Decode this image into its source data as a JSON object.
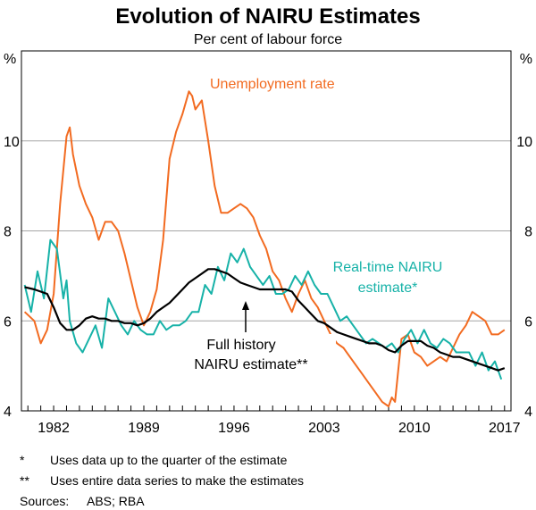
{
  "chart_data": {
    "type": "line",
    "title": "Evolution of NAIRU Estimates",
    "subtitle": "Per cent of labour force",
    "ylabel_left": "%",
    "ylabel_right": "%",
    "ylim": [
      4,
      12
    ],
    "yticks": [
      4,
      6,
      8,
      10
    ],
    "xlim": [
      1979.5,
      2017.5
    ],
    "xticks": [
      1982,
      1989,
      1996,
      2003,
      2010,
      2017
    ],
    "grid": true,
    "colors": {
      "unemployment": "#f26b21",
      "realtime": "#17b2a8",
      "fullhistory": "#000000",
      "grid": "#a6a6a6"
    },
    "series": [
      {
        "name": "Unemployment rate",
        "label": "Unemployment rate",
        "color": "#f26b21",
        "x": [
          1979.75,
          1980.5,
          1981.0,
          1981.5,
          1982.0,
          1982.5,
          1983.0,
          1983.25,
          1983.5,
          1984.0,
          1984.5,
          1985.0,
          1985.5,
          1986.0,
          1986.5,
          1987.0,
          1987.5,
          1988.0,
          1988.5,
          1989.0,
          1989.5,
          1990.0,
          1990.5,
          1991.0,
          1991.5,
          1992.0,
          1992.5,
          1992.75,
          1993.0,
          1993.5,
          1994.0,
          1994.5,
          1995.0,
          1995.5,
          1996.0,
          1996.5,
          1997.0,
          1997.5,
          1998.0,
          1998.5,
          1999.0,
          1999.5,
          2000.0,
          2000.5,
          2001.0,
          2001.5,
          2002.0,
          2002.5,
          2003.0,
          2003.5,
          2004.0,
          2004.5,
          2005.0,
          2005.5,
          2006.0,
          2006.5,
          2007.0,
          2007.5,
          2008.0,
          2008.25,
          2008.5,
          2009.0,
          2009.5,
          2010.0,
          2010.5,
          2011.0,
          2011.5,
          2012.0,
          2012.5,
          2013.0,
          2013.5,
          2014.0,
          2014.5,
          2015.0,
          2015.5,
          2016.0,
          2016.5,
          2017.0
        ],
        "values": [
          6.2,
          6.0,
          5.5,
          5.8,
          6.6,
          8.6,
          10.1,
          10.3,
          9.7,
          9.0,
          8.6,
          8.3,
          7.8,
          8.2,
          8.2,
          8.0,
          7.5,
          6.9,
          6.3,
          5.9,
          6.2,
          6.7,
          7.8,
          9.6,
          10.2,
          10.6,
          11.1,
          11.0,
          10.7,
          10.9,
          10.0,
          9.0,
          8.4,
          8.4,
          8.5,
          8.6,
          8.5,
          8.3,
          7.9,
          7.6,
          7.1,
          6.9,
          6.5,
          6.2,
          6.6,
          6.9,
          6.5,
          6.3,
          6.0,
          5.7,
          5.5,
          5.4,
          5.2,
          5.0,
          4.8,
          4.6,
          4.4,
          4.2,
          4.1,
          4.3,
          4.2,
          5.6,
          5.7,
          5.3,
          5.2,
          5.0,
          5.1,
          5.2,
          5.1,
          5.4,
          5.7,
          5.9,
          6.2,
          6.1,
          6.0,
          5.7,
          5.7,
          5.8
        ]
      },
      {
        "name": "Real-time NAIRU estimate*",
        "label_line1": "Real-time NAIRU",
        "label_line2": "estimate*",
        "color": "#17b2a8",
        "x": [
          1979.75,
          1980.25,
          1980.75,
          1981.25,
          1981.75,
          1982.25,
          1982.75,
          1983.0,
          1983.25,
          1983.75,
          1984.25,
          1984.75,
          1985.25,
          1985.75,
          1986.25,
          1986.75,
          1987.25,
          1987.75,
          1988.25,
          1988.75,
          1989.25,
          1989.75,
          1990.25,
          1990.75,
          1991.25,
          1991.75,
          1992.25,
          1992.75,
          1993.25,
          1993.75,
          1994.25,
          1994.75,
          1995.25,
          1995.75,
          1996.25,
          1996.75,
          1997.25,
          1997.75,
          1998.25,
          1998.75,
          1999.25,
          1999.75,
          2000.25,
          2000.75,
          2001.25,
          2001.75,
          2002.25,
          2002.75,
          2003.25,
          2003.75,
          2004.25,
          2004.75,
          2005.25,
          2005.75,
          2006.25,
          2006.75,
          2007.25,
          2007.75,
          2008.25,
          2008.75,
          2009.25,
          2009.75,
          2010.25,
          2010.75,
          2011.25,
          2011.75,
          2012.25,
          2012.75,
          2013.25,
          2013.75,
          2014.25,
          2014.75,
          2015.25,
          2015.75,
          2016.25,
          2016.75
        ],
        "values": [
          6.8,
          6.2,
          7.1,
          6.5,
          7.8,
          7.6,
          6.5,
          6.9,
          6.0,
          5.5,
          5.3,
          5.6,
          5.9,
          5.4,
          6.5,
          6.2,
          5.9,
          5.7,
          6.0,
          5.8,
          5.7,
          5.7,
          6.0,
          5.8,
          5.9,
          5.9,
          6.0,
          6.2,
          6.2,
          6.8,
          6.6,
          7.2,
          6.9,
          7.5,
          7.3,
          7.6,
          7.2,
          7.0,
          6.8,
          7.0,
          6.6,
          6.6,
          6.7,
          7.0,
          6.8,
          7.1,
          6.8,
          6.6,
          6.6,
          6.3,
          6.0,
          6.1,
          5.9,
          5.7,
          5.5,
          5.6,
          5.5,
          5.4,
          5.5,
          5.3,
          5.6,
          5.8,
          5.5,
          5.8,
          5.5,
          5.4,
          5.6,
          5.5,
          5.3,
          5.3,
          5.3,
          5.0,
          5.3,
          4.9,
          5.1,
          4.7
        ]
      },
      {
        "name": "Full history NAIRU estimate**",
        "label_line1": "Full history",
        "label_line2": "NAIRU estimate**",
        "color": "#000000",
        "x": [
          1979.75,
          1980.5,
          1981.0,
          1981.5,
          1982.0,
          1982.5,
          1983.0,
          1983.5,
          1984.0,
          1984.5,
          1985.0,
          1985.5,
          1986.0,
          1986.5,
          1987.0,
          1987.5,
          1988.0,
          1988.5,
          1989.0,
          1989.5,
          1990.0,
          1990.5,
          1991.0,
          1991.5,
          1992.0,
          1992.5,
          1993.0,
          1993.5,
          1994.0,
          1994.5,
          1995.0,
          1995.5,
          1996.0,
          1996.5,
          1997.0,
          1997.5,
          1998.0,
          1998.5,
          1999.0,
          1999.5,
          2000.0,
          2000.5,
          2001.0,
          2001.5,
          2002.0,
          2002.5,
          2003.0,
          2003.5,
          2004.0,
          2004.5,
          2005.0,
          2005.5,
          2006.0,
          2006.5,
          2007.0,
          2007.5,
          2008.0,
          2008.5,
          2009.0,
          2009.5,
          2010.0,
          2010.5,
          2011.0,
          2011.5,
          2012.0,
          2012.5,
          2013.0,
          2013.5,
          2014.0,
          2014.5,
          2015.0,
          2015.5,
          2016.0,
          2016.5,
          2017.0
        ],
        "values": [
          6.75,
          6.7,
          6.65,
          6.6,
          6.3,
          5.95,
          5.8,
          5.8,
          5.9,
          6.05,
          6.1,
          6.05,
          6.05,
          6.0,
          6.0,
          5.95,
          5.95,
          5.9,
          5.95,
          6.05,
          6.2,
          6.3,
          6.4,
          6.55,
          6.7,
          6.85,
          6.95,
          7.05,
          7.15,
          7.15,
          7.1,
          7.05,
          6.95,
          6.85,
          6.8,
          6.75,
          6.7,
          6.7,
          6.7,
          6.7,
          6.7,
          6.65,
          6.45,
          6.3,
          6.15,
          6.0,
          5.95,
          5.85,
          5.75,
          5.7,
          5.65,
          5.6,
          5.55,
          5.5,
          5.5,
          5.45,
          5.35,
          5.3,
          5.45,
          5.55,
          5.55,
          5.55,
          5.45,
          5.4,
          5.3,
          5.25,
          5.2,
          5.2,
          5.15,
          5.1,
          5.05,
          5.0,
          4.95,
          4.9,
          4.95
        ]
      }
    ],
    "annotations": {
      "arrow_note": "Full history NAIRU estimate** points to the full history line near 1996",
      "arrow_target": {
        "x": 1996.6,
        "y": 6.85
      }
    }
  },
  "footnotes": [
    {
      "mark": "*",
      "text": "Uses data up to the quarter of the estimate"
    },
    {
      "mark": "**",
      "text": "Uses entire data series to make the estimates"
    }
  ],
  "sources": {
    "label": "Sources:",
    "text": "ABS; RBA"
  }
}
